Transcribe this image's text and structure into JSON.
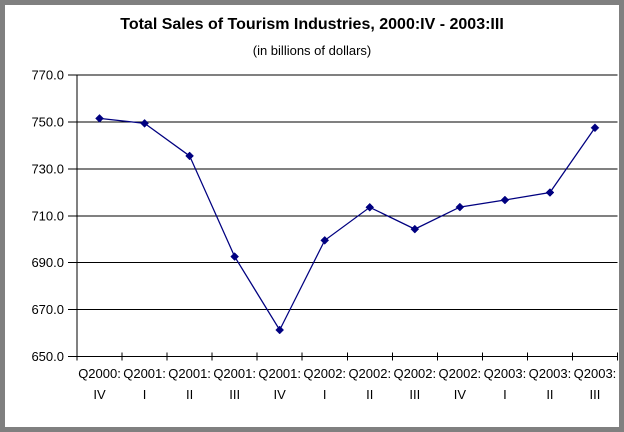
{
  "chart_data": {
    "type": "line",
    "title": "Total Sales of Tourism Industries, 2000:IV - 2003:III",
    "subtitle": "(in billions of dollars)",
    "xlabel": "",
    "ylabel": "",
    "legend": "none",
    "grid": true,
    "marker": "diamond",
    "categories": [
      "2000:IV",
      "2001:I",
      "2001:II",
      "2001:III",
      "2001:IV",
      "2002:I",
      "2002:II",
      "2002:III",
      "2002:IV",
      "2003:I",
      "2003:II",
      "2003:III"
    ],
    "xtick_labels": [
      [
        "Q2000:",
        "IV"
      ],
      [
        "Q2001:",
        "I"
      ],
      [
        "Q2001:",
        "II"
      ],
      [
        "Q2001:",
        "III"
      ],
      [
        "Q2001:",
        "IV"
      ],
      [
        "Q2002:",
        "I"
      ],
      [
        "Q2002:",
        "II"
      ],
      [
        "Q2002:",
        "III"
      ],
      [
        "Q2002:",
        "IV"
      ],
      [
        "Q2003:",
        "I"
      ],
      [
        "Q2003:",
        "II"
      ],
      [
        "Q2003:",
        "III"
      ]
    ],
    "values": [
      751.5,
      749.4,
      735.5,
      692.6,
      661.3,
      699.5,
      713.6,
      704.3,
      713.7,
      716.7,
      719.9,
      747.5
    ],
    "ylim": [
      650,
      770
    ],
    "ytick_step": 20,
    "ytick_values": [
      650,
      670,
      690,
      710,
      730,
      750,
      770
    ],
    "ytick_labels": [
      "650.0",
      "670.0",
      "690.0",
      "710.0",
      "730.0",
      "750.0",
      "770.0"
    ],
    "colors": {
      "line": "#000080",
      "marker": "#000080",
      "gridline": "#000000",
      "axis": "#000000",
      "text": "#000000",
      "background": "#ffffff",
      "frame_border": "#808080"
    }
  }
}
